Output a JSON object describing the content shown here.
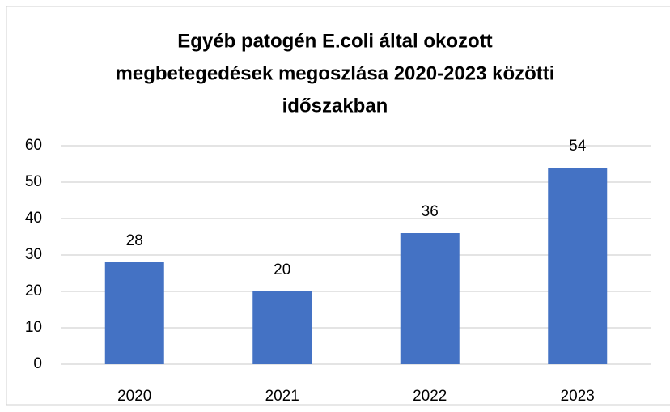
{
  "chart_data": {
    "type": "bar",
    "title": [
      "Egyéb patogén E.coli által okozott",
      "megbetegedések megoszlása 2020-2023 közötti",
      "időszakban"
    ],
    "categories": [
      "2020",
      "2021",
      "2022",
      "2023"
    ],
    "values": [
      28,
      20,
      36,
      54
    ],
    "color": "#4472c4",
    "ylim": [
      0,
      60
    ],
    "yticks": [
      0,
      10,
      20,
      30,
      40,
      50,
      60
    ],
    "grid": true,
    "data_labels": true
  }
}
